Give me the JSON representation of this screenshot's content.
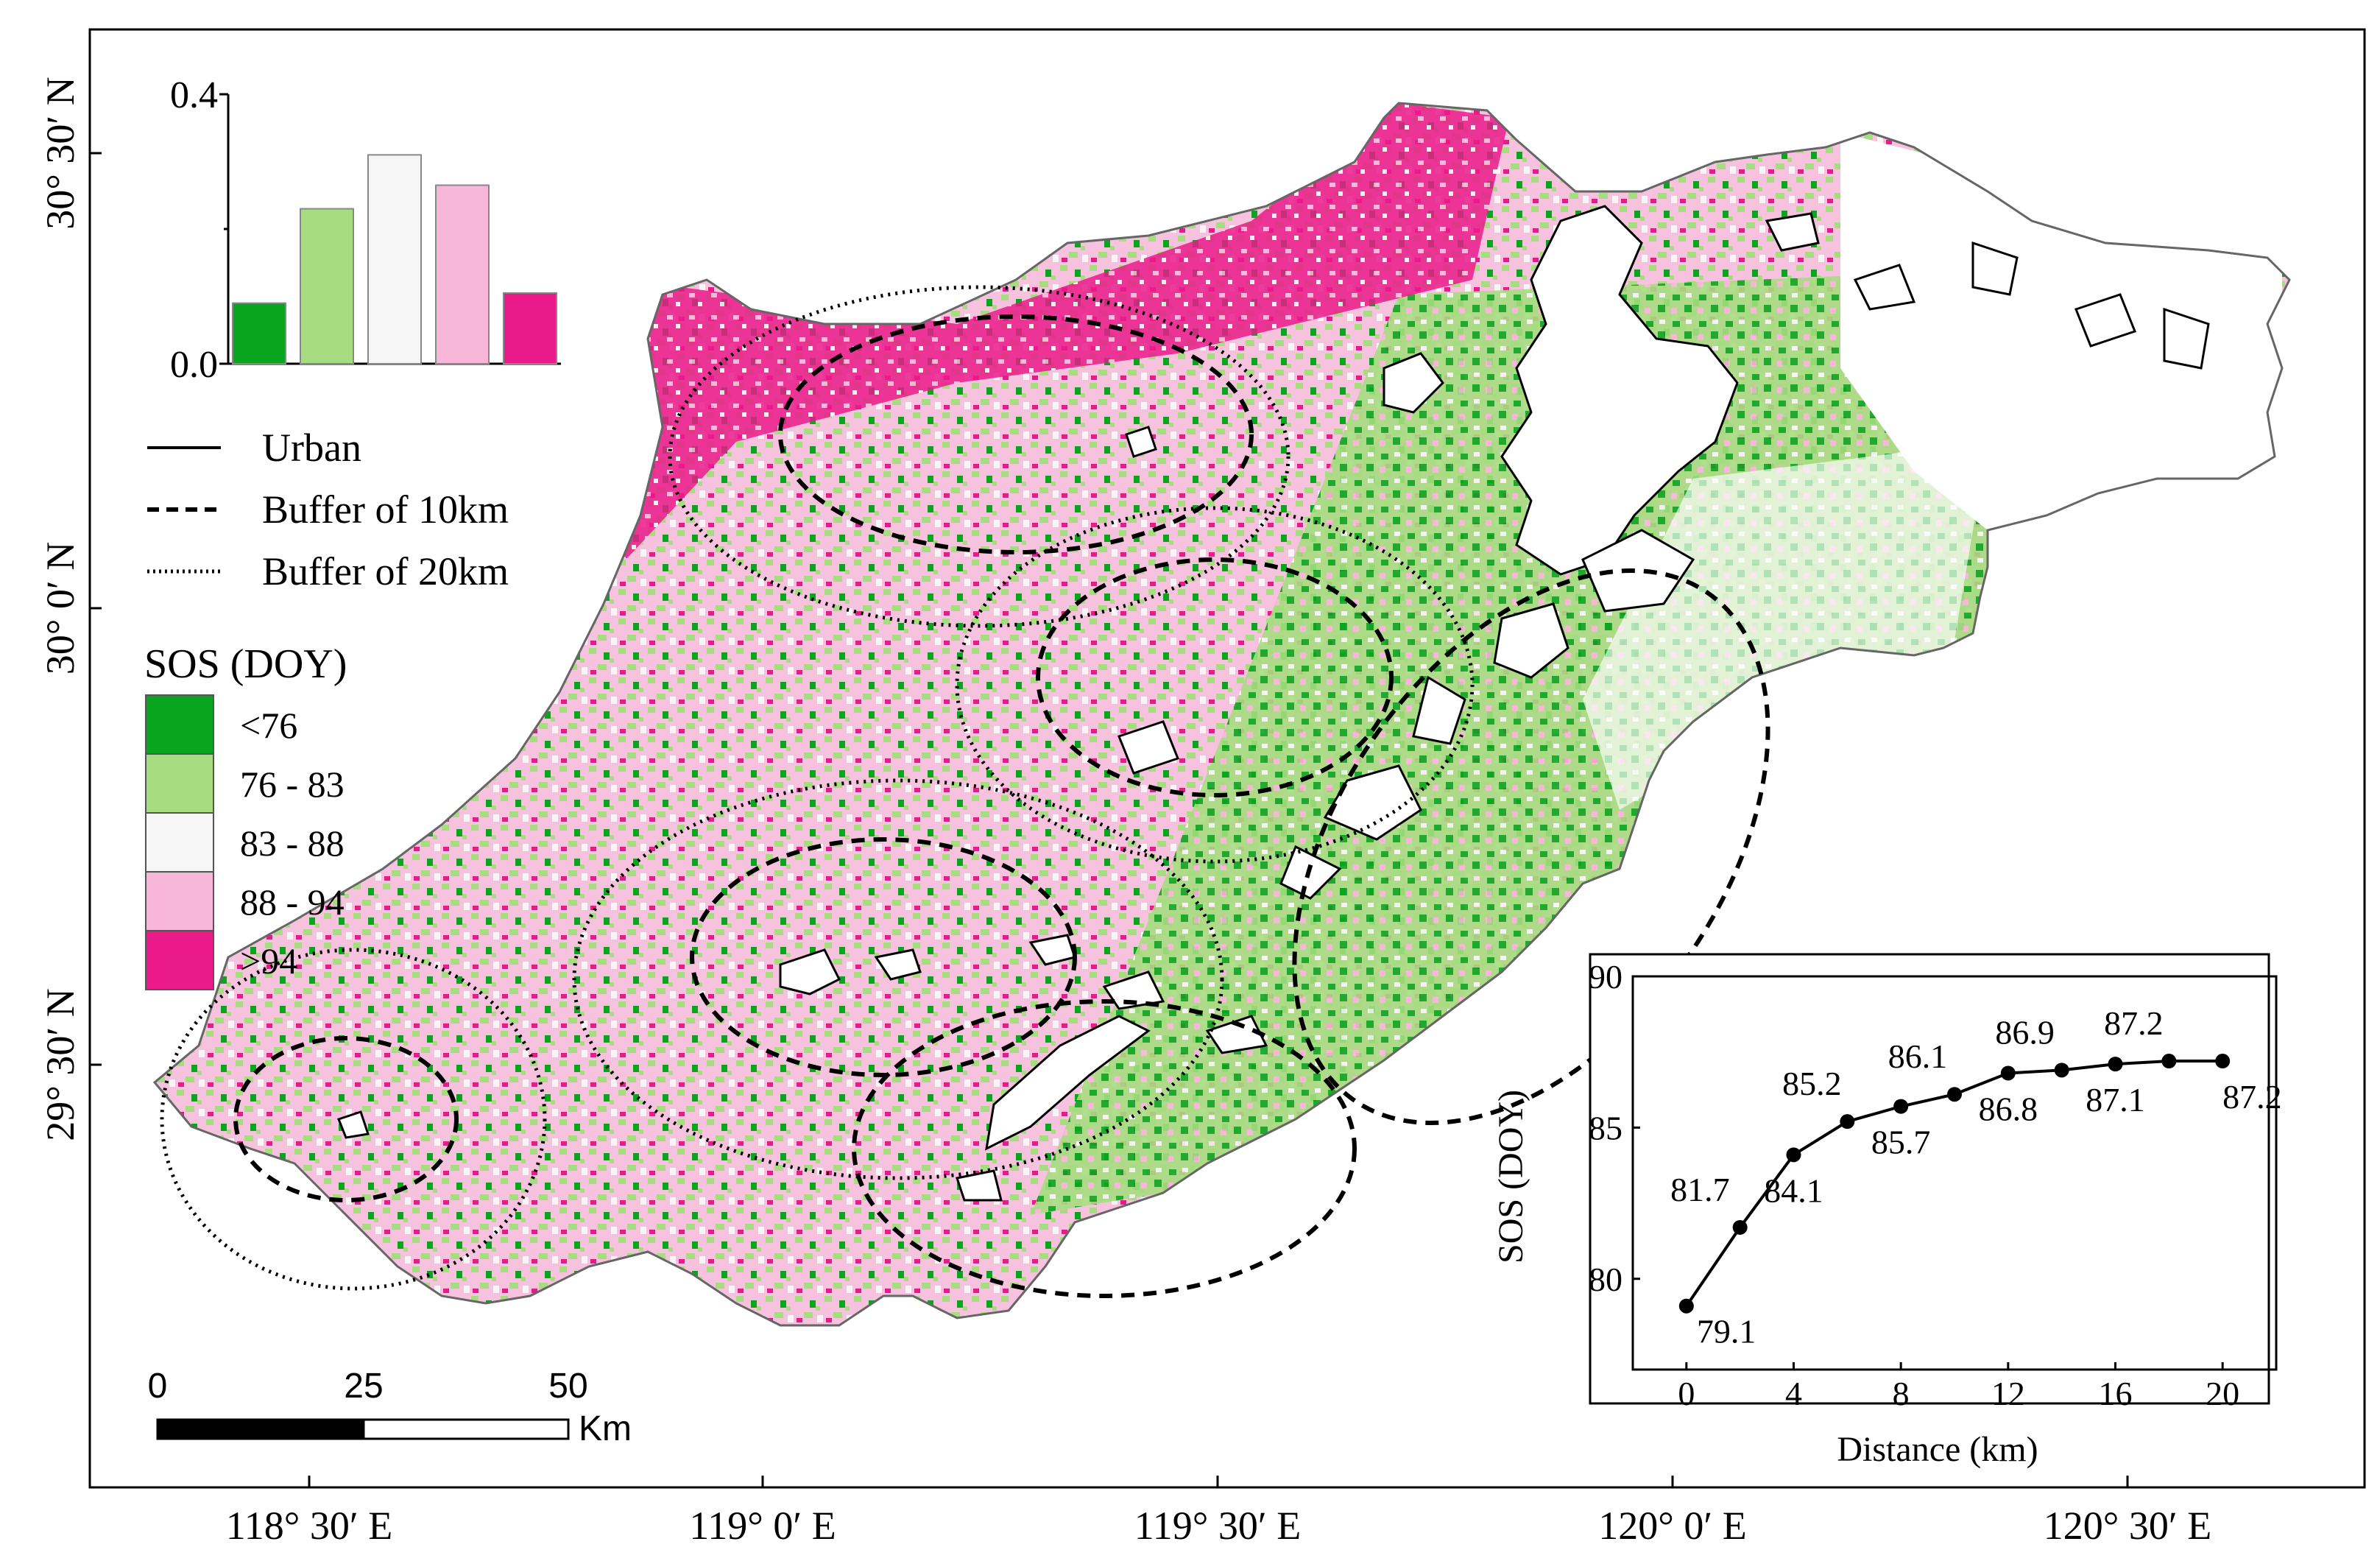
{
  "map": {
    "lat_labels": [
      "30° 30′ N",
      "30° 0′ N",
      "29° 30′ N"
    ],
    "lon_labels": [
      "118° 30′ E",
      "119° 0′ E",
      "119° 30′ E",
      "120° 0′ E",
      "120° 30′ E"
    ],
    "scale_bar": {
      "ticks": [
        "0",
        "25",
        "50"
      ],
      "unit": "Km"
    }
  },
  "legend_lines": [
    {
      "label": "Urban",
      "style": "solid"
    },
    {
      "label": "Buffer of 10km",
      "style": "dashed"
    },
    {
      "label": "Buffer of 20km",
      "style": "dotted"
    }
  ],
  "sos_legend": {
    "title": "SOS (DOY)",
    "classes": [
      {
        "label": "<76",
        "color": "#0aa51e"
      },
      {
        "label": "76 - 83",
        "color": "#a6dd80"
      },
      {
        "label": "83 - 88",
        "color": "#f6f6f6"
      },
      {
        "label": "88 - 94",
        "color": "#f8b6d8"
      },
      {
        "label": ">94",
        "color": "#ea1a8a"
      }
    ]
  },
  "chart_data": [
    {
      "type": "bar",
      "categories": [
        "<76",
        "76 - 83",
        "83 - 88",
        "88 - 94",
        ">94"
      ],
      "values": [
        0.09,
        0.23,
        0.31,
        0.265,
        0.105
      ],
      "colors": [
        "#0aa51e",
        "#a6dd80",
        "#f6f6f6",
        "#f8b6d8",
        "#ea1a8a"
      ],
      "ylim": [
        0,
        0.4
      ],
      "ytick_labels": [
        "0.0",
        "0.4"
      ]
    },
    {
      "type": "line",
      "x": [
        0,
        2,
        4,
        6,
        8,
        10,
        12,
        14,
        16,
        18,
        20
      ],
      "y": [
        79.1,
        81.7,
        84.1,
        85.2,
        85.7,
        86.1,
        86.8,
        86.9,
        87.1,
        87.2,
        87.2
      ],
      "point_labels": [
        "79.1",
        "81.7",
        "84.1",
        "85.2",
        "85.7",
        "86.1",
        "86.8",
        "86.9",
        "87.1",
        "87.2",
        "87.2"
      ],
      "xlabel": "Distance (km)",
      "ylabel": "SOS (DOY)",
      "xlim": [
        -2,
        22
      ],
      "ylim": [
        77,
        90
      ],
      "xticks": [
        0,
        4,
        8,
        12,
        16,
        20
      ],
      "yticks": [
        80,
        85,
        90
      ]
    }
  ]
}
